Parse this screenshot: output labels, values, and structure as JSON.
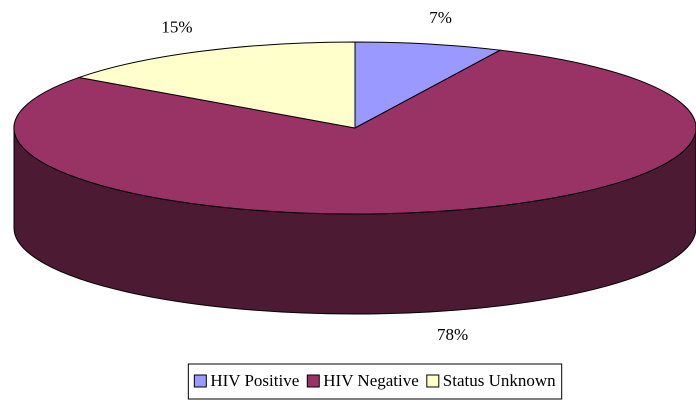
{
  "chart_data": {
    "type": "pie",
    "categories": [
      "HIV Positive",
      "HIV Negative",
      "Status Unknown"
    ],
    "values": [
      7,
      78,
      15
    ],
    "value_labels": [
      "7%",
      "78%",
      "15%"
    ],
    "colors": [
      "#9999ff",
      "#993366",
      "#ffffcc"
    ],
    "legend": "bottom"
  }
}
